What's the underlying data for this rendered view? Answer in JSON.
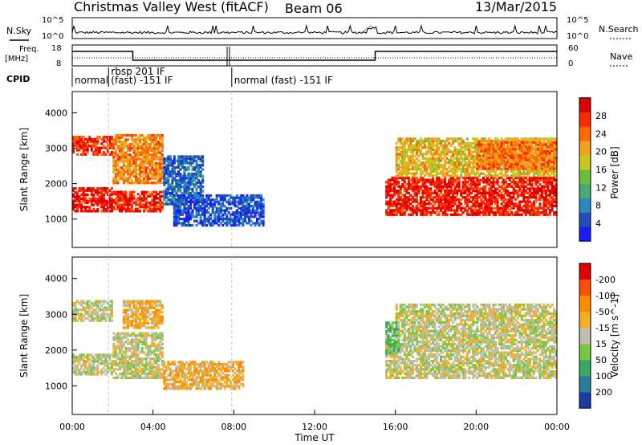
{
  "header": {
    "title": "Christmas Valley West (fitACF)",
    "beam": "Beam 06",
    "date": "13/Mar/2015"
  },
  "top_panels": {
    "nsky_label": "N.Sky",
    "nsky_ticks": [
      "10^5",
      "10^0"
    ],
    "nsky_right_ticks": [
      "10^5",
      "10^0"
    ],
    "nsearch_label": "N.Search",
    "freq_label_line1": "Freq.",
    "freq_label_line2": "[MHz]",
    "freq_ticks": [
      "18",
      "8"
    ],
    "nave_ticks": [
      "60",
      "0"
    ],
    "nave_label": "Nave",
    "cpid_label": "CPID",
    "cpid_segments": [
      {
        "label": "normal",
        "start_h": 0.0,
        "end_h": 1.8
      },
      {
        "label": "rbsp 201 IF",
        "label2": "(fast) -151 IF",
        "start_h": 1.8,
        "end_h": 7.9
      },
      {
        "label": "normal (fast) -151 IF",
        "start_h": 7.9,
        "end_h": 24.0
      }
    ],
    "freq_step": [
      {
        "start_h": 0.0,
        "end_h": 3.0,
        "level": 0.8
      },
      {
        "start_h": 3.0,
        "end_h": 15.0,
        "level": 0.25
      },
      {
        "start_h": 15.0,
        "end_h": 24.0,
        "level": 0.8
      }
    ]
  },
  "chart_data": [
    {
      "type": "heatmap",
      "name": "power",
      "xlabel": "",
      "ylabel": "Slant Range [km]",
      "x_unit": "hours UT",
      "ylim": [
        200,
        4600
      ],
      "y_ticks": [
        "1000",
        "2000",
        "3000",
        "4000"
      ],
      "colorbar_label": "Power [dB]",
      "colorbar_ticks": [
        "4",
        "8",
        "12",
        "16",
        "20",
        "24",
        "28"
      ],
      "colorbar_colors": [
        "#1a1aff",
        "#1f4fb4",
        "#2a8ac0",
        "#4aa878",
        "#6abf3a",
        "#c8c820",
        "#f4a020",
        "#ff6a00",
        "#ff2a00",
        "#e00000"
      ],
      "bands": [
        {
          "x": [
            0.0,
            2.0
          ],
          "y": [
            1200,
            1900
          ],
          "level": 0.92
        },
        {
          "x": [
            0.0,
            2.0
          ],
          "y": [
            2800,
            3350
          ],
          "level": 0.85
        },
        {
          "x": [
            2.0,
            4.5
          ],
          "y": [
            1200,
            1800
          ],
          "level": 0.88
        },
        {
          "x": [
            2.0,
            4.5
          ],
          "y": [
            2000,
            3400
          ],
          "level": 0.7
        },
        {
          "x": [
            4.5,
            6.5
          ],
          "y": [
            1400,
            2800
          ],
          "level": 0.2
        },
        {
          "x": [
            5.0,
            9.5
          ],
          "y": [
            800,
            1700
          ],
          "level": 0.15
        },
        {
          "x": [
            15.5,
            24.0
          ],
          "y": [
            1100,
            2200
          ],
          "level": 0.9
        },
        {
          "x": [
            16.0,
            24.0
          ],
          "y": [
            2200,
            3300
          ],
          "level": 0.6
        },
        {
          "x": [
            20.0,
            24.0
          ],
          "y": [
            2400,
            3200
          ],
          "level": 0.75
        }
      ]
    },
    {
      "type": "heatmap",
      "name": "velocity",
      "xlabel": "Time UT",
      "ylabel": "Slant Range [km]",
      "x_unit": "hours UT",
      "ylim": [
        200,
        4600
      ],
      "y_ticks": [
        "1000",
        "2000",
        "3000",
        "4000"
      ],
      "x_ticks": [
        "00:00",
        "04:00",
        "08:00",
        "12:00",
        "16:00",
        "20:00",
        "00:00"
      ],
      "xlim": [
        0,
        24
      ],
      "colorbar_label": "Velocity [m s^-1]",
      "colorbar_ticks": [
        "200",
        "100",
        "50",
        "15",
        "-15",
        "-50",
        "-100",
        "-200"
      ],
      "colorbar_colors": [
        "#1a3aa8",
        "#2a7a9a",
        "#3aa860",
        "#78c840",
        "#bebeb0",
        "#f4b020",
        "#ff8c00",
        "#ff5000",
        "#e00000"
      ],
      "bands": [
        {
          "x": [
            0.0,
            2.0
          ],
          "y": [
            1300,
            1900
          ],
          "level": 0.5
        },
        {
          "x": [
            0.0,
            2.0
          ],
          "y": [
            2800,
            3400
          ],
          "level": 0.5
        },
        {
          "x": [
            2.0,
            4.5
          ],
          "y": [
            1200,
            2500
          ],
          "level": 0.5
        },
        {
          "x": [
            2.5,
            4.5
          ],
          "y": [
            2600,
            3400
          ],
          "level": 0.62
        },
        {
          "x": [
            4.5,
            8.5
          ],
          "y": [
            900,
            1700
          ],
          "level": 0.62
        },
        {
          "x": [
            15.5,
            24.0
          ],
          "y": [
            1200,
            2200
          ],
          "level": 0.5
        },
        {
          "x": [
            16.0,
            24.0
          ],
          "y": [
            2200,
            3300
          ],
          "level": 0.5
        },
        {
          "x": [
            15.5,
            16.2
          ],
          "y": [
            1900,
            2800
          ],
          "level": 0.35
        }
      ]
    }
  ]
}
